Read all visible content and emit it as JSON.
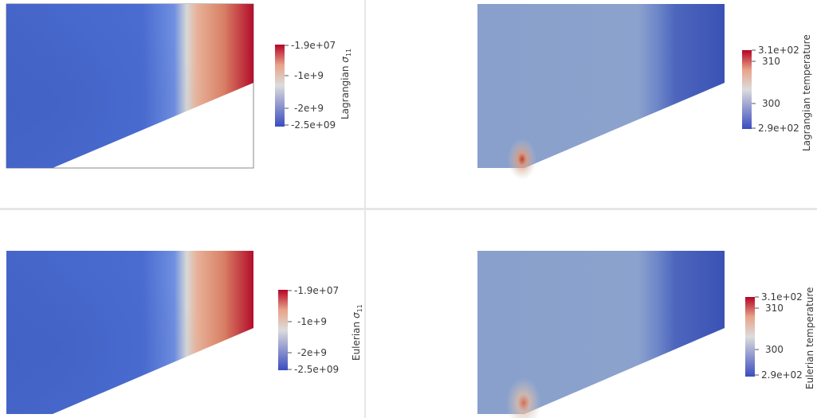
{
  "panels": {
    "top_left": {
      "title": "Lagrangian",
      "title_symbol": "σ",
      "title_subscript": "11",
      "ticks": {
        "top": "-1.9e+07",
        "mid1": "-1e+9",
        "mid2": "-2e+9",
        "bottom": "-2.5e+09"
      }
    },
    "top_right": {
      "title": "Lagrangian temperature",
      "ticks": {
        "top": "3.1e+02",
        "mid1": "310",
        "mid2": "300",
        "bottom": "2.9e+02"
      }
    },
    "bottom_left": {
      "title": "Eulerian",
      "title_symbol": "σ",
      "title_subscript": "11",
      "ticks": {
        "top": "-1.9e+07",
        "mid1": "-1e+9",
        "mid2": "-2e+9",
        "bottom": "-2.5e+09"
      }
    },
    "bottom_right": {
      "title": "Eulerian temperature",
      "ticks": {
        "top": "3.1e+02",
        "mid1": "310",
        "mid2": "300",
        "bottom": "2.9e+02"
      }
    }
  },
  "colors": {
    "cool": "#3b4cc0",
    "neutral": "#dddddd",
    "warm": "#b40426",
    "field_blue": "#4a68c8",
    "temp_field": "#8ea3cd"
  }
}
